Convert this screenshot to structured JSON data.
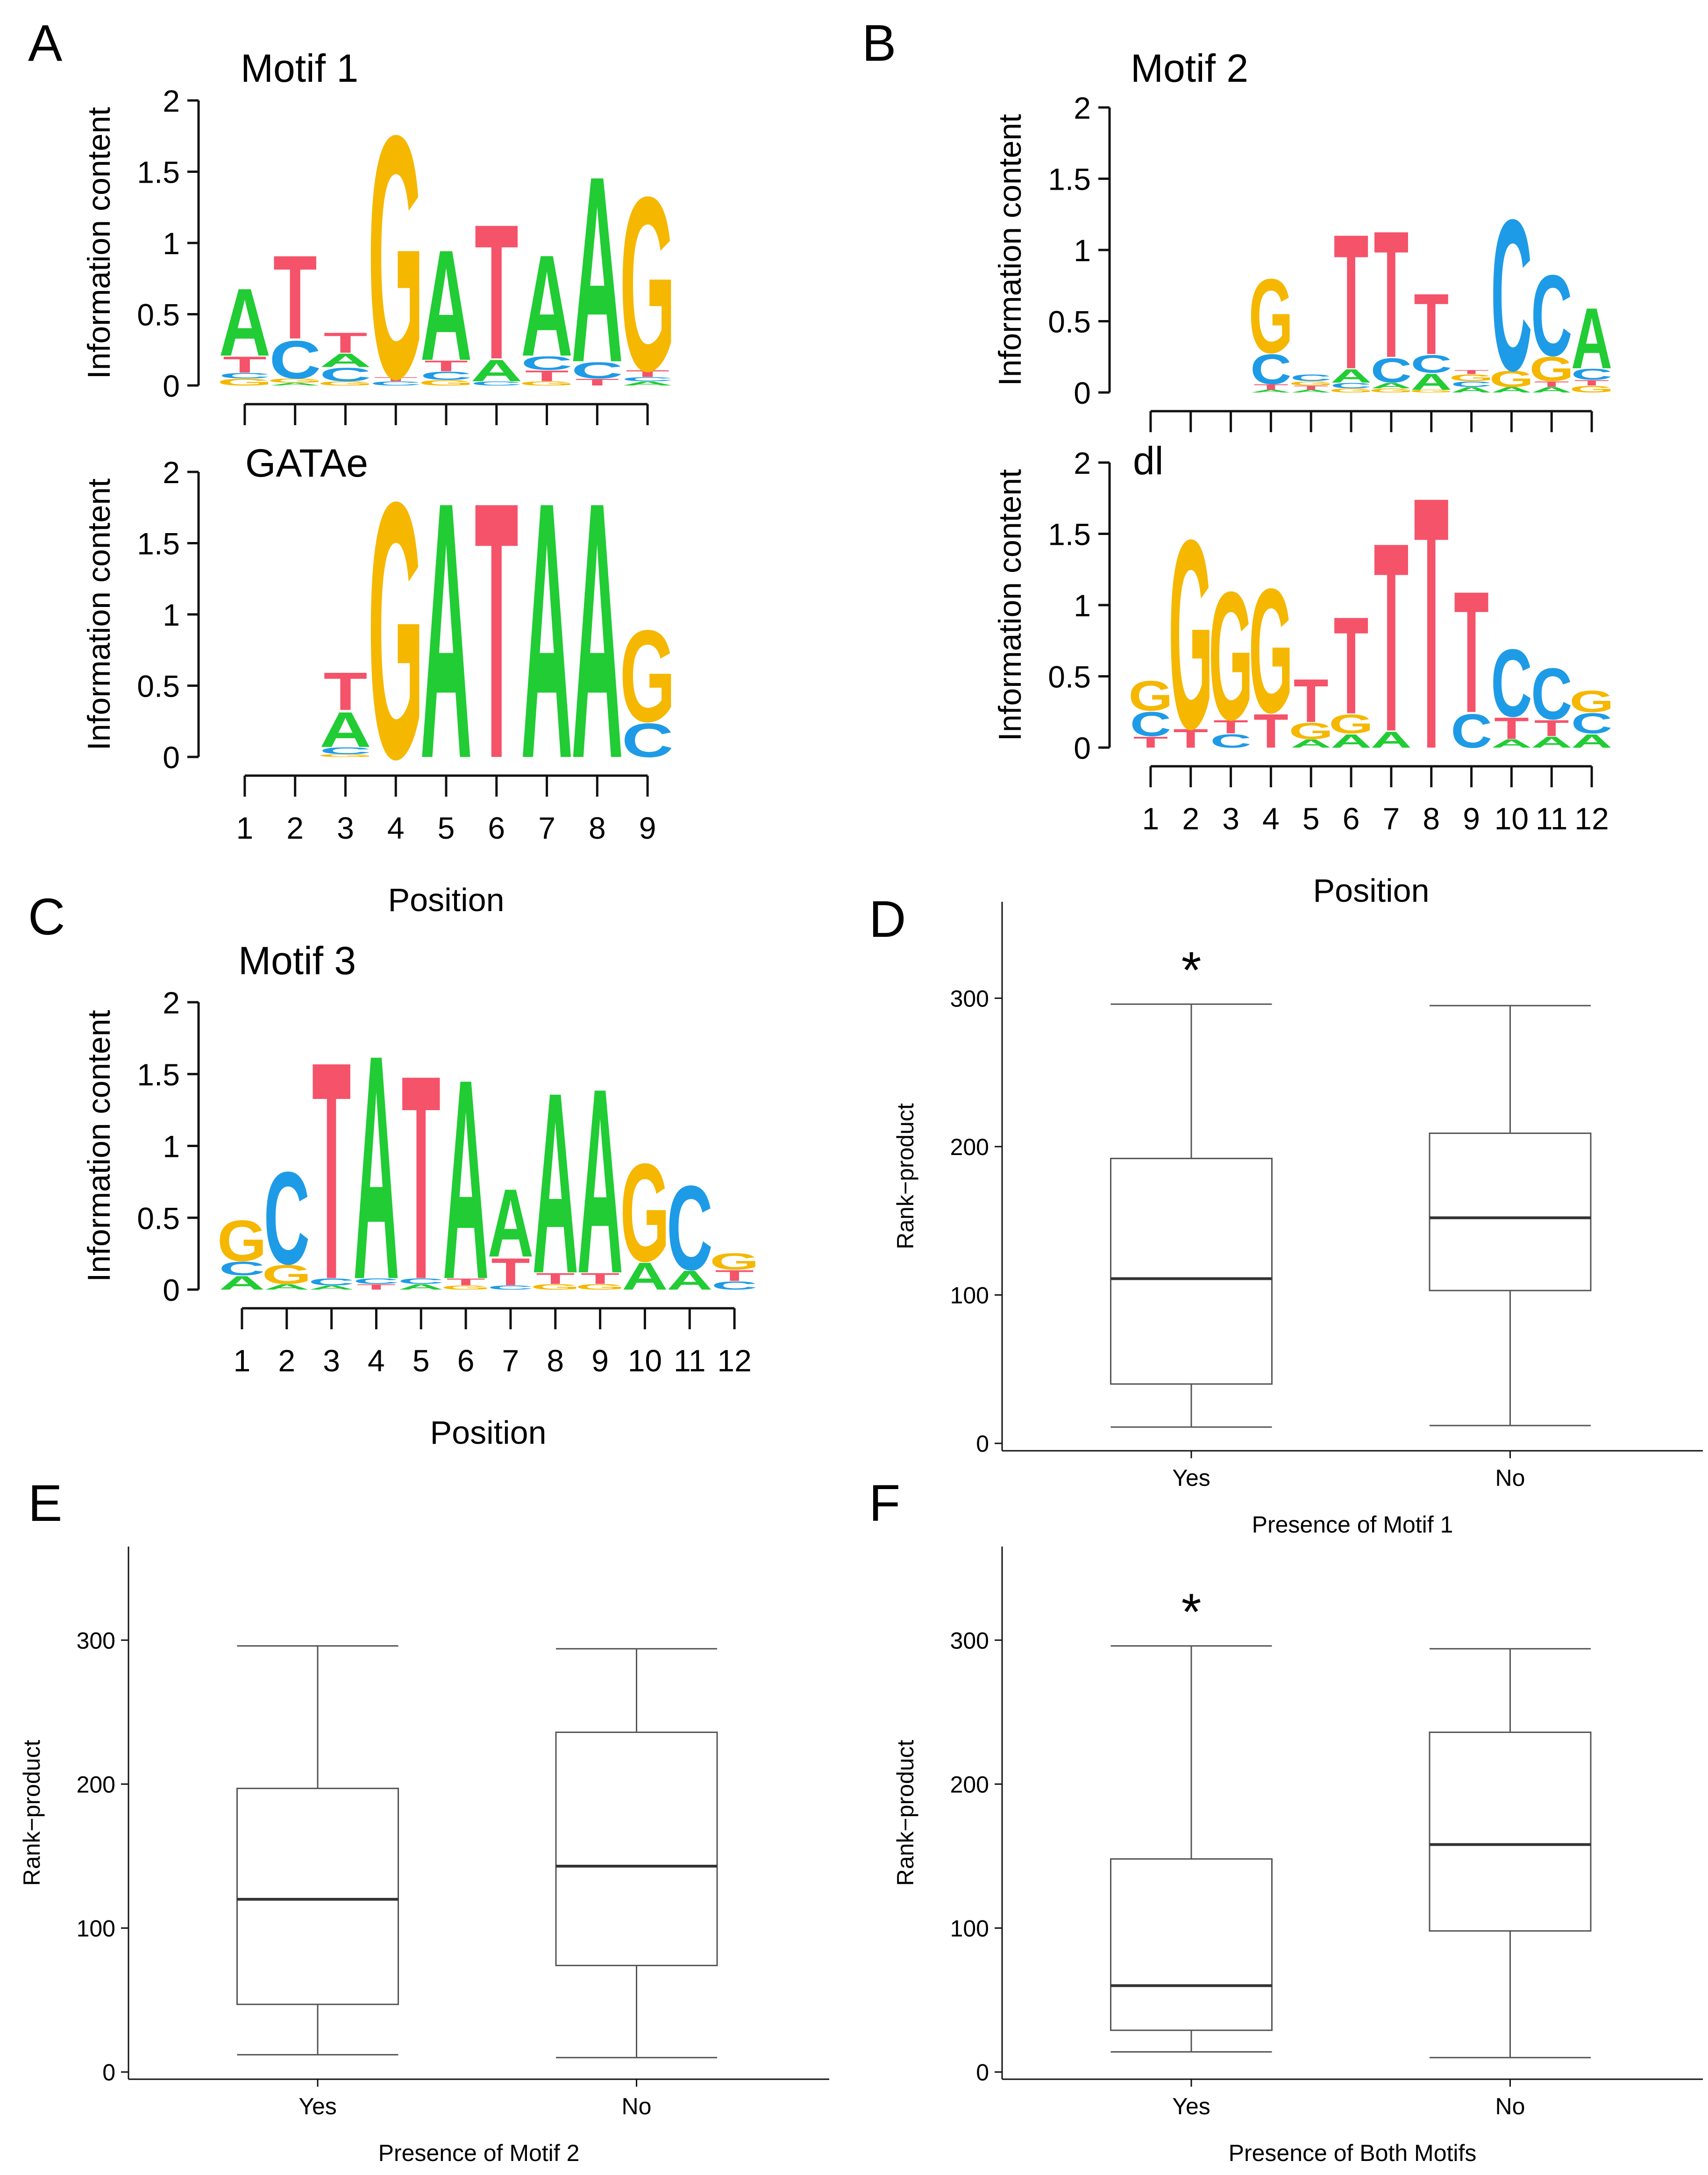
{
  "colors": {
    "A": "#21cc34",
    "C": "#1e9be6",
    "G": "#f5b700",
    "T": "#f4536a",
    "axis": "#111111",
    "box": "#555555",
    "median": "#333333"
  },
  "common": {
    "ylabel_ic": "Information content",
    "xlabel_pos": "Position",
    "ylabel_box": "Rank−product",
    "yes_label": "Yes",
    "no_label": "No",
    "sig_mark": "*"
  },
  "chart_data": [
    {
      "id": "motif1",
      "panel": "A",
      "type": "sequence_logo",
      "title": "Motif 1",
      "show_tick_labels": false,
      "ylim": [
        0,
        2
      ],
      "yticks": [
        "0",
        "0.5",
        "1",
        "1.5",
        "2"
      ],
      "positions": [
        "1",
        "2",
        "3",
        "4",
        "5",
        "6",
        "7",
        "8",
        "9"
      ],
      "stacks": [
        [
          [
            "G",
            0.05
          ],
          [
            "C",
            0.04
          ],
          [
            "T",
            0.12
          ],
          [
            "A",
            0.5
          ]
        ],
        [
          [
            "A",
            0.02
          ],
          [
            "G",
            0.03
          ],
          [
            "C",
            0.28
          ],
          [
            "T",
            0.62
          ]
        ],
        [
          [
            "G",
            0.03
          ],
          [
            "C",
            0.1
          ],
          [
            "A",
            0.1
          ],
          [
            "T",
            0.15
          ]
        ],
        [
          [
            "C",
            0.03
          ],
          [
            "T",
            0.03
          ],
          [
            "G",
            1.8
          ]
        ],
        [
          [
            "G",
            0.04
          ],
          [
            "C",
            0.06
          ],
          [
            "T",
            0.08
          ],
          [
            "A",
            0.82
          ]
        ],
        [
          [
            "C",
            0.03
          ],
          [
            "A",
            0.16
          ],
          [
            "T",
            1.0
          ]
        ],
        [
          [
            "G",
            0.03
          ],
          [
            "T",
            0.08
          ],
          [
            "C",
            0.1
          ],
          [
            "A",
            0.75
          ]
        ],
        [
          [
            "T",
            0.05
          ],
          [
            "C",
            0.12
          ],
          [
            "A",
            1.38
          ]
        ],
        [
          [
            "A",
            0.03
          ],
          [
            "C",
            0.03
          ],
          [
            "T",
            0.05
          ],
          [
            "G",
            1.29
          ]
        ]
      ]
    },
    {
      "id": "gatae",
      "panel": "",
      "type": "sequence_logo",
      "title": "GATAe",
      "show_tick_labels": true,
      "ylim": [
        0,
        2
      ],
      "yticks": [
        "0",
        "0.5",
        "1",
        "1.5",
        "2"
      ],
      "positions": [
        "1",
        "2",
        "3",
        "4",
        "5",
        "6",
        "7",
        "8",
        "9"
      ],
      "stacks": [
        [],
        [],
        [
          [
            "G",
            0.02
          ],
          [
            "C",
            0.05
          ],
          [
            "A",
            0.26
          ],
          [
            "T",
            0.28
          ]
        ],
        [
          [
            "G",
            1.9
          ]
        ],
        [
          [
            "A",
            1.9
          ]
        ],
        [
          [
            "T",
            1.9
          ]
        ],
        [
          [
            "A",
            1.9
          ]
        ],
        [
          [
            "A",
            1.9
          ]
        ],
        [
          [
            "C",
            0.25
          ],
          [
            "G",
            0.68
          ]
        ]
      ]
    },
    {
      "id": "motif2",
      "panel": "B",
      "type": "sequence_logo",
      "title": "Motif 2",
      "show_tick_labels": false,
      "ylim": [
        0,
        2
      ],
      "yticks": [
        "0",
        "0.5",
        "1",
        "1.5",
        "2"
      ],
      "positions": [
        "1",
        "2",
        "3",
        "4",
        "5",
        "6",
        "7",
        "8",
        "9",
        "10",
        "11",
        "12"
      ],
      "stacks": [
        [],
        [],
        [],
        [
          [
            "A",
            0.02
          ],
          [
            "T",
            0.04
          ],
          [
            "C",
            0.22
          ],
          [
            "G",
            0.55
          ]
        ],
        [
          [
            "A",
            0.02
          ],
          [
            "T",
            0.03
          ],
          [
            "G",
            0.03
          ],
          [
            "C",
            0.05
          ]
        ],
        [
          [
            "G",
            0.03
          ],
          [
            "C",
            0.04
          ],
          [
            "A",
            0.1
          ],
          [
            "T",
            1.0
          ]
        ],
        [
          [
            "G",
            0.03
          ],
          [
            "A",
            0.04
          ],
          [
            "C",
            0.18
          ],
          [
            "T",
            0.94
          ]
        ],
        [
          [
            "G",
            0.02
          ],
          [
            "A",
            0.12
          ],
          [
            "C",
            0.13
          ],
          [
            "T",
            0.45
          ]
        ],
        [
          [
            "A",
            0.04
          ],
          [
            "C",
            0.04
          ],
          [
            "G",
            0.05
          ],
          [
            "T",
            0.03
          ]
        ],
        [
          [
            "A",
            0.04
          ],
          [
            "G",
            0.12
          ],
          [
            "C",
            1.12
          ]
        ],
        [
          [
            "A",
            0.04
          ],
          [
            "T",
            0.04
          ],
          [
            "G",
            0.18
          ],
          [
            "C",
            0.6
          ]
        ],
        [
          [
            "G",
            0.05
          ],
          [
            "T",
            0.04
          ],
          [
            "C",
            0.08
          ],
          [
            "A",
            0.45
          ]
        ]
      ]
    },
    {
      "id": "dl",
      "panel": "",
      "type": "sequence_logo",
      "title": "dl",
      "show_tick_labels": true,
      "ylim": [
        0,
        2
      ],
      "yticks": [
        "0",
        "0.5",
        "1",
        "1.5",
        "2"
      ],
      "positions": [
        "1",
        "2",
        "3",
        "4",
        "5",
        "6",
        "7",
        "8",
        "9",
        "10",
        "11",
        "12"
      ],
      "stacks": [
        [
          [
            "T",
            0.08
          ],
          [
            "C",
            0.18
          ],
          [
            "G",
            0.22
          ]
        ],
        [
          [
            "T",
            0.14
          ],
          [
            "G",
            1.4
          ]
        ],
        [
          [
            "C",
            0.1
          ],
          [
            "T",
            0.1
          ],
          [
            "G",
            0.95
          ]
        ],
        [
          [
            "T",
            0.25
          ],
          [
            "G",
            0.92
          ]
        ],
        [
          [
            "A",
            0.06
          ],
          [
            "G",
            0.12
          ],
          [
            "T",
            0.32
          ]
        ],
        [
          [
            "A",
            0.1
          ],
          [
            "G",
            0.14
          ],
          [
            "T",
            0.72
          ]
        ],
        [
          [
            "A",
            0.12
          ],
          [
            "T",
            1.4
          ]
        ],
        [
          [
            "T",
            1.87
          ]
        ],
        [
          [
            "C",
            0.25
          ],
          [
            "T",
            0.9
          ]
        ],
        [
          [
            "A",
            0.06
          ],
          [
            "T",
            0.16
          ],
          [
            "C",
            0.5
          ]
        ],
        [
          [
            "A",
            0.08
          ],
          [
            "T",
            0.12
          ],
          [
            "C",
            0.38
          ]
        ],
        [
          [
            "A",
            0.1
          ],
          [
            "C",
            0.15
          ],
          [
            "G",
            0.16
          ]
        ]
      ]
    },
    {
      "id": "motif3",
      "panel": "C",
      "type": "sequence_logo",
      "title": "Motif 3",
      "show_tick_labels": true,
      "ylim": [
        0,
        2
      ],
      "yticks": [
        "0",
        "0.5",
        "1",
        "1.5",
        "2"
      ],
      "positions": [
        "1",
        "2",
        "3",
        "4",
        "5",
        "6",
        "7",
        "8",
        "9",
        "10",
        "11",
        "12"
      ],
      "stacks": [
        [
          [
            "A",
            0.1
          ],
          [
            "C",
            0.1
          ],
          [
            "G",
            0.3
          ]
        ],
        [
          [
            "A",
            0.04
          ],
          [
            "G",
            0.14
          ],
          [
            "C",
            0.68
          ]
        ],
        [
          [
            "A",
            0.03
          ],
          [
            "C",
            0.05
          ],
          [
            "T",
            1.6
          ]
        ],
        [
          [
            "T",
            0.04
          ],
          [
            "C",
            0.04
          ],
          [
            "A",
            1.65
          ]
        ],
        [
          [
            "A",
            0.04
          ],
          [
            "C",
            0.04
          ],
          [
            "T",
            1.5
          ]
        ],
        [
          [
            "G",
            0.03
          ],
          [
            "T",
            0.05
          ],
          [
            "A",
            1.47
          ]
        ],
        [
          [
            "C",
            0.03
          ],
          [
            "T",
            0.2
          ],
          [
            "A",
            0.5
          ]
        ],
        [
          [
            "G",
            0.04
          ],
          [
            "T",
            0.08
          ],
          [
            "A",
            1.33
          ]
        ],
        [
          [
            "G",
            0.04
          ],
          [
            "T",
            0.08
          ],
          [
            "A",
            1.36
          ]
        ],
        [
          [
            "A",
            0.2
          ],
          [
            "G",
            0.72
          ]
        ],
        [
          [
            "A",
            0.14
          ],
          [
            "C",
            0.62
          ]
        ],
        [
          [
            "C",
            0.06
          ],
          [
            "T",
            0.08
          ],
          [
            "G",
            0.12
          ]
        ]
      ]
    },
    {
      "id": "box_d",
      "panel": "D",
      "type": "boxplot",
      "xlabel": "Presence of Motif 1",
      "ylabel": "Rank−product",
      "ylim": [
        -5,
        365
      ],
      "yticks": [
        0,
        100,
        200,
        300
      ],
      "categories": [
        "Yes",
        "No"
      ],
      "significant": [
        true,
        false
      ],
      "boxes": [
        {
          "min": 11,
          "q1": 40,
          "median": 111,
          "q3": 192,
          "max": 296
        },
        {
          "min": 12,
          "q1": 103,
          "median": 152,
          "q3": 209,
          "max": 295
        }
      ]
    },
    {
      "id": "box_e",
      "panel": "E",
      "type": "boxplot",
      "xlabel": "Presence of Motif 2",
      "ylabel": "Rank−product",
      "ylim": [
        -5,
        365
      ],
      "yticks": [
        0,
        100,
        200,
        300
      ],
      "categories": [
        "Yes",
        "No"
      ],
      "significant": [
        false,
        false
      ],
      "boxes": [
        {
          "min": 12,
          "q1": 47,
          "median": 120,
          "q3": 197,
          "max": 296
        },
        {
          "min": 10,
          "q1": 74,
          "median": 143,
          "q3": 236,
          "max": 294
        }
      ]
    },
    {
      "id": "box_f",
      "panel": "F",
      "type": "boxplot",
      "xlabel": "Presence of Both Motifs",
      "ylabel": "Rank−product",
      "ylim": [
        -5,
        365
      ],
      "yticks": [
        0,
        100,
        200,
        300
      ],
      "categories": [
        "Yes",
        "No"
      ],
      "significant": [
        true,
        false
      ],
      "boxes": [
        {
          "min": 14,
          "q1": 29,
          "median": 60,
          "q3": 148,
          "max": 296
        },
        {
          "min": 10,
          "q1": 98,
          "median": 158,
          "q3": 236,
          "max": 294
        }
      ]
    }
  ]
}
